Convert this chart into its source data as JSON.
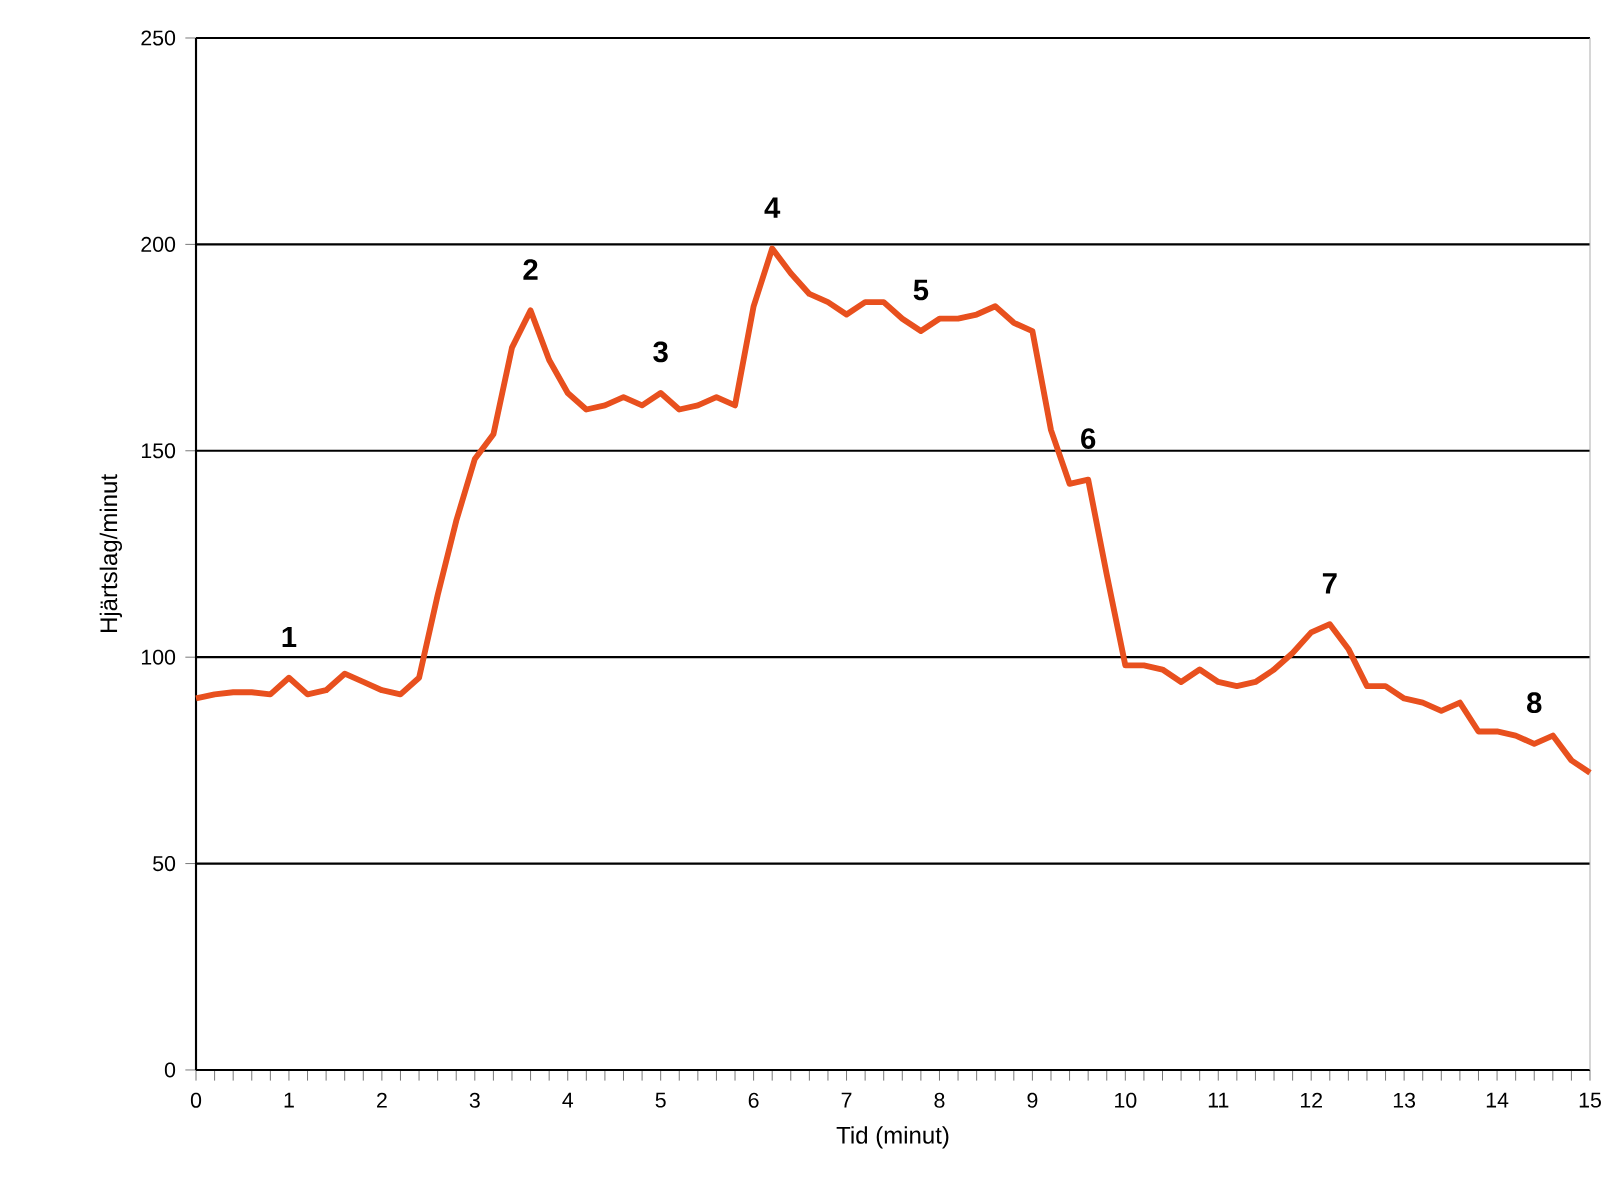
{
  "chart_data": {
    "type": "line",
    "xlabel": "Tid (minut)",
    "ylabel": "Hjärtslag/minut",
    "x": [
      0,
      0.2,
      0.4,
      0.6,
      0.8,
      1.0,
      1.2,
      1.4,
      1.6,
      1.8,
      2.0,
      2.2,
      2.4,
      2.6,
      2.8,
      3.0,
      3.2,
      3.4,
      3.6,
      3.8,
      4.0,
      4.2,
      4.4,
      4.6,
      4.8,
      5.0,
      5.2,
      5.4,
      5.6,
      5.8,
      6.0,
      6.2,
      6.4,
      6.6,
      6.8,
      7.0,
      7.2,
      7.4,
      7.6,
      7.8,
      8.0,
      8.2,
      8.4,
      8.6,
      8.8,
      9.0,
      9.2,
      9.4,
      9.6,
      9.8,
      10.0,
      10.2,
      10.4,
      10.6,
      10.8,
      11.0,
      11.2,
      11.4,
      11.6,
      11.8,
      12.0,
      12.2,
      12.4,
      12.6,
      12.8,
      13.0,
      13.2,
      13.4,
      13.6,
      13.8,
      14.0,
      14.2,
      14.4,
      14.6,
      14.8,
      15.0
    ],
    "series": [
      {
        "color": "#e8501e",
        "values": [
          90,
          91,
          91.5,
          91.5,
          91,
          95,
          91,
          92,
          96,
          94,
          92,
          91,
          95,
          115,
          133,
          148,
          154,
          175,
          184,
          172,
          164,
          160,
          161,
          163,
          161,
          164,
          160,
          161,
          163,
          161,
          185,
          199,
          193,
          188,
          186,
          183,
          186,
          186,
          182,
          179,
          182,
          182,
          183,
          185,
          181,
          179,
          155,
          142,
          143,
          120,
          98,
          98,
          97,
          94,
          97,
          94,
          93,
          94,
          97,
          101,
          106,
          108,
          102,
          93,
          93,
          90,
          89,
          87,
          89,
          82,
          82,
          81,
          79,
          81,
          75,
          72
        ]
      }
    ],
    "xlim": [
      0,
      15
    ],
    "ylim": [
      0,
      250
    ],
    "xticks": [
      0,
      1,
      2,
      3,
      4,
      5,
      6,
      7,
      8,
      9,
      10,
      11,
      12,
      13,
      14,
      15
    ],
    "yticks": [
      0,
      50,
      100,
      150,
      200,
      250
    ],
    "grid": "y",
    "marker": "none",
    "line_style": "solid",
    "annotations": [
      {
        "text": "1",
        "x": 1.0,
        "y": 95
      },
      {
        "text": "2",
        "x": 3.6,
        "y": 184
      },
      {
        "text": "3",
        "x": 5.0,
        "y": 164
      },
      {
        "text": "4",
        "x": 6.2,
        "y": 199
      },
      {
        "text": "5",
        "x": 7.8,
        "y": 179
      },
      {
        "text": "6",
        "x": 9.6,
        "y": 143
      },
      {
        "text": "7",
        "x": 12.2,
        "y": 108
      },
      {
        "text": "8",
        "x": 14.4,
        "y": 79
      }
    ]
  }
}
